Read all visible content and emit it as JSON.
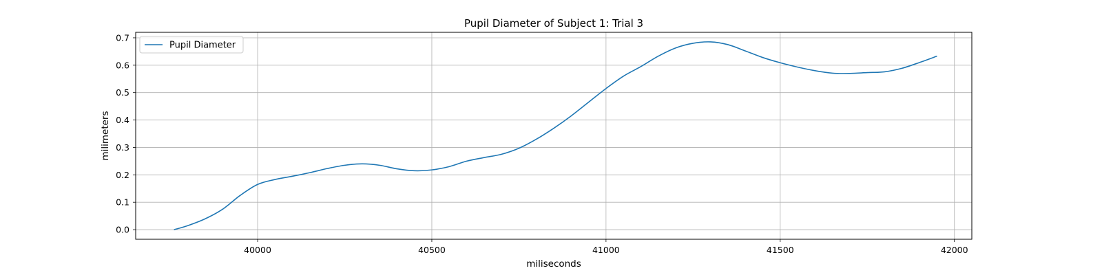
{
  "chart_data": {
    "type": "line",
    "title": "Pupil Diameter of Subject 1: Trial 3",
    "xlabel": "miliseconds",
    "ylabel": "milimeters",
    "xlim": [
      39650,
      42050
    ],
    "ylim": [
      -0.035,
      0.72
    ],
    "xticks": [
      40000,
      40500,
      41000,
      41500,
      42000
    ],
    "yticks": [
      0.0,
      0.1,
      0.2,
      0.3,
      0.4,
      0.5,
      0.6,
      0.7
    ],
    "ytick_labels": [
      "0.0",
      "0.1",
      "0.2",
      "0.3",
      "0.4",
      "0.5",
      "0.6",
      "0.7"
    ],
    "grid": true,
    "legend_position": "top-left",
    "series": [
      {
        "name": "Pupil Diameter",
        "color": "#1f77b4",
        "x": [
          39760,
          39800,
          39850,
          39900,
          39950,
          40000,
          40050,
          40100,
          40150,
          40200,
          40250,
          40300,
          40350,
          40400,
          40450,
          40500,
          40550,
          40600,
          40650,
          40700,
          40750,
          40800,
          40850,
          40900,
          40950,
          41000,
          41050,
          41100,
          41150,
          41200,
          41250,
          41300,
          41350,
          41400,
          41450,
          41500,
          41550,
          41600,
          41650,
          41700,
          41750,
          41800,
          41850,
          41900,
          41950
        ],
        "y": [
          0.0,
          0.015,
          0.04,
          0.075,
          0.125,
          0.165,
          0.183,
          0.195,
          0.208,
          0.223,
          0.235,
          0.24,
          0.235,
          0.222,
          0.215,
          0.218,
          0.23,
          0.25,
          0.263,
          0.275,
          0.297,
          0.33,
          0.37,
          0.415,
          0.465,
          0.515,
          0.56,
          0.595,
          0.633,
          0.663,
          0.68,
          0.685,
          0.675,
          0.652,
          0.628,
          0.609,
          0.593,
          0.58,
          0.571,
          0.57,
          0.573,
          0.576,
          0.589,
          0.61,
          0.633
        ]
      }
    ]
  }
}
